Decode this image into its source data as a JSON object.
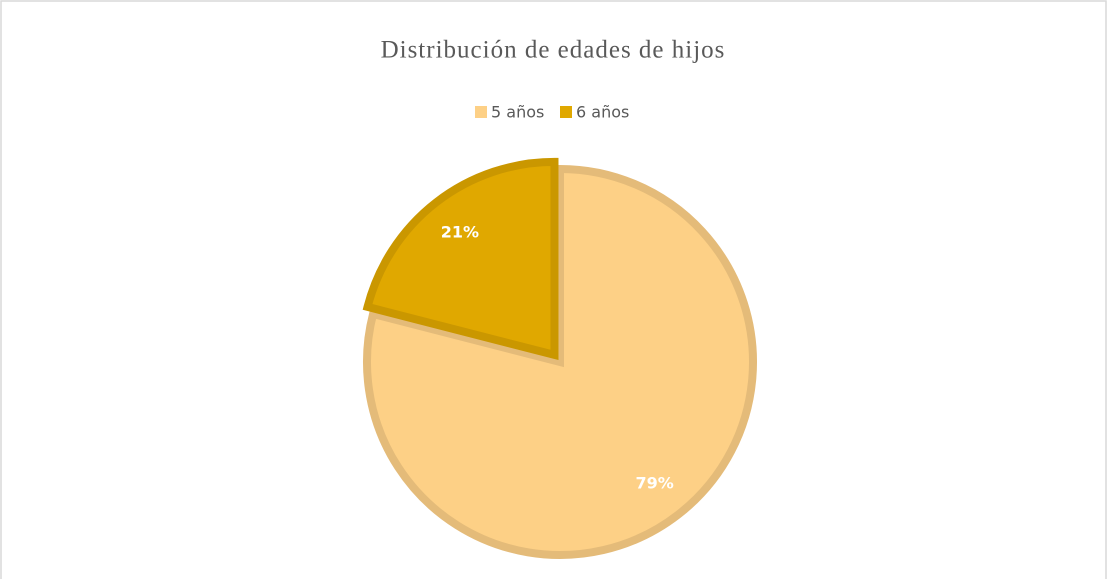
{
  "chart_data": {
    "type": "pie",
    "title": "Distribución de edades de hijos",
    "categories": [
      "5 años",
      "6 años"
    ],
    "values": [
      79,
      21
    ],
    "value_labels": [
      "79%",
      "21%"
    ],
    "colors": [
      "#fdd086",
      "#e0a800"
    ],
    "legend": "top"
  }
}
